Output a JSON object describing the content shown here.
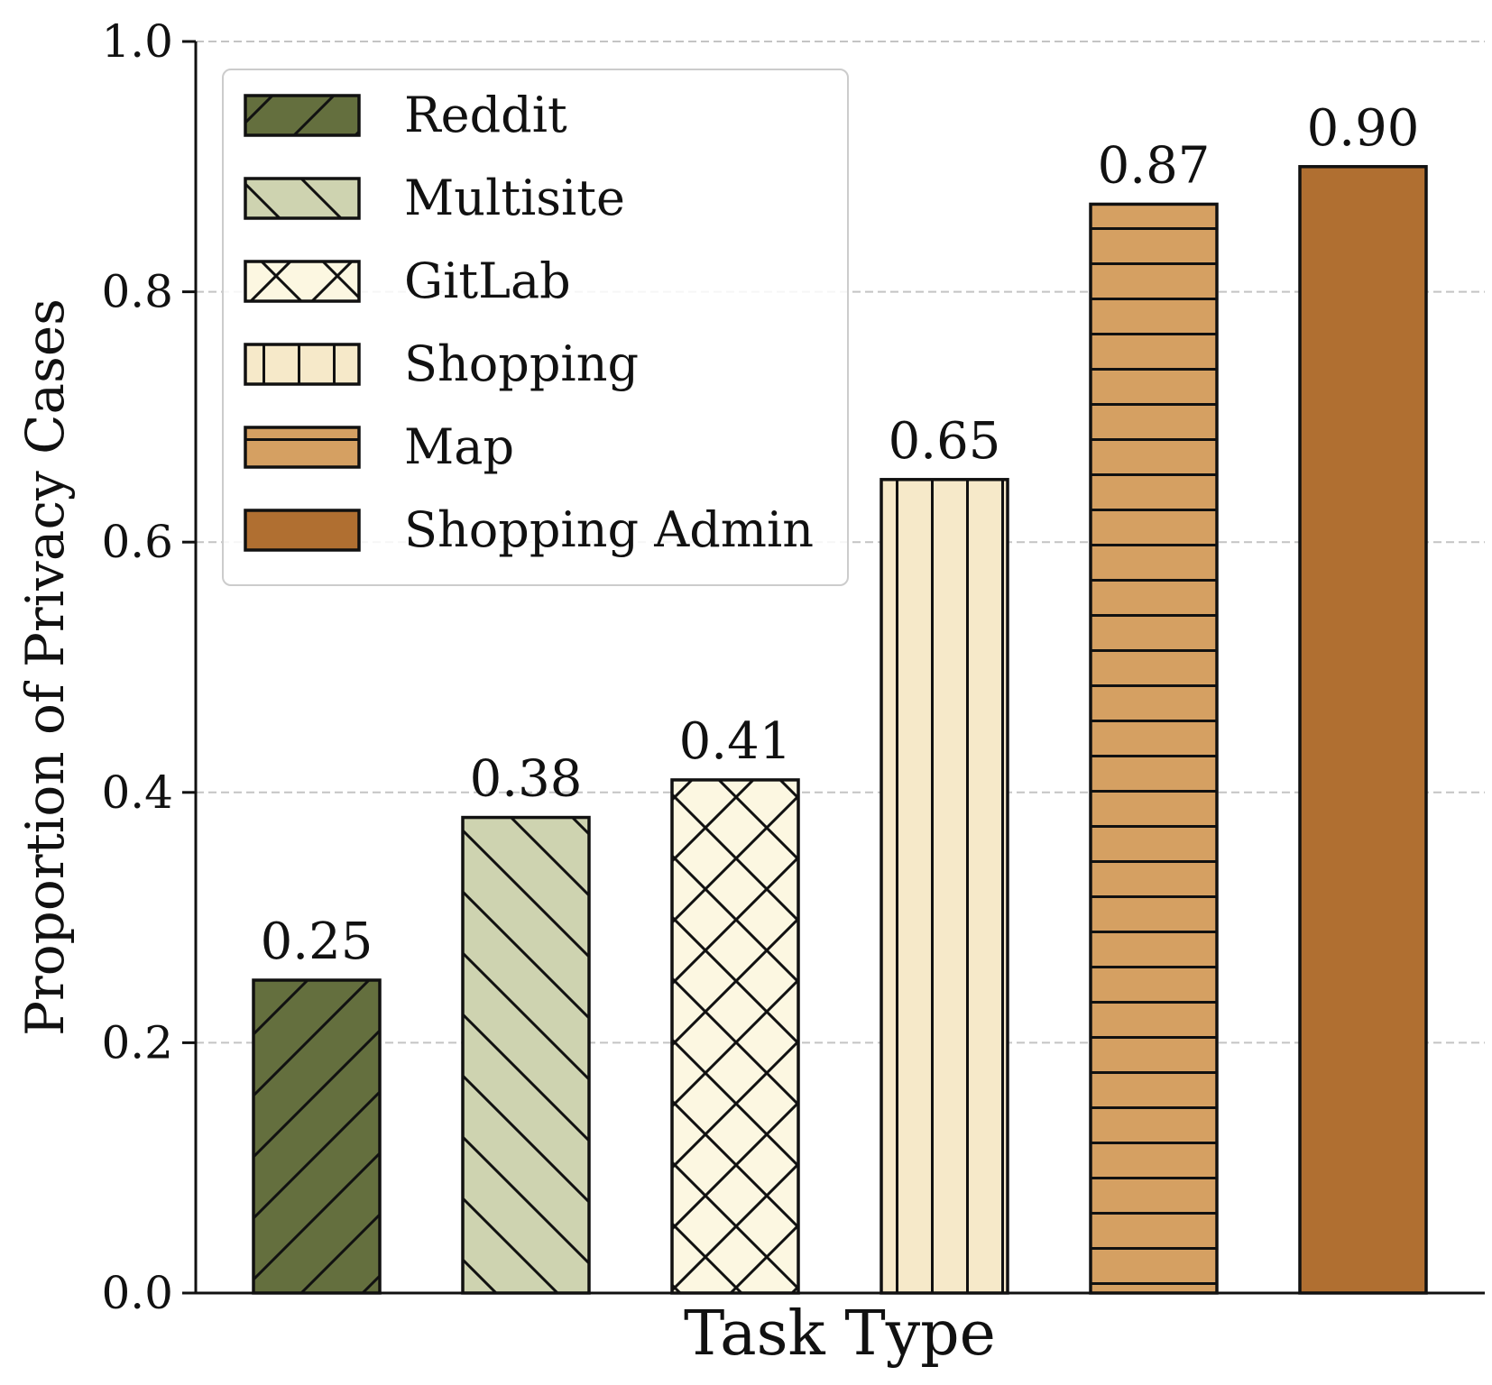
{
  "chart_data": {
    "type": "bar",
    "categories": [
      "Reddit",
      "Multisite",
      "GitLab",
      "Shopping",
      "Map",
      "Shopping Admin"
    ],
    "values": [
      0.25,
      0.38,
      0.41,
      0.65,
      0.87,
      0.9
    ],
    "data_labels": [
      "0.25",
      "0.38",
      "0.41",
      "0.65",
      "0.87",
      "0.90"
    ],
    "colors": [
      "#646f3e",
      "#ced3b0",
      "#fcf7e1",
      "#f6e9c9",
      "#d5a062",
      "#b06f31"
    ],
    "hatches": [
      "forward-diagonal",
      "back-diagonal",
      "crosshatch",
      "vertical",
      "horizontal",
      "none"
    ],
    "xlabel": "Task Type",
    "ylabel": "Proportion of Privacy Cases",
    "ylim": [
      0,
      1.0
    ],
    "yticks": [
      "0.0",
      "0.2",
      "0.4",
      "0.6",
      "0.8",
      "1.0"
    ],
    "ytick_values": [
      0.0,
      0.2,
      0.4,
      0.6,
      0.8,
      1.0
    ],
    "grid": "horizontal dashed",
    "legend_position": "upper-left"
  }
}
